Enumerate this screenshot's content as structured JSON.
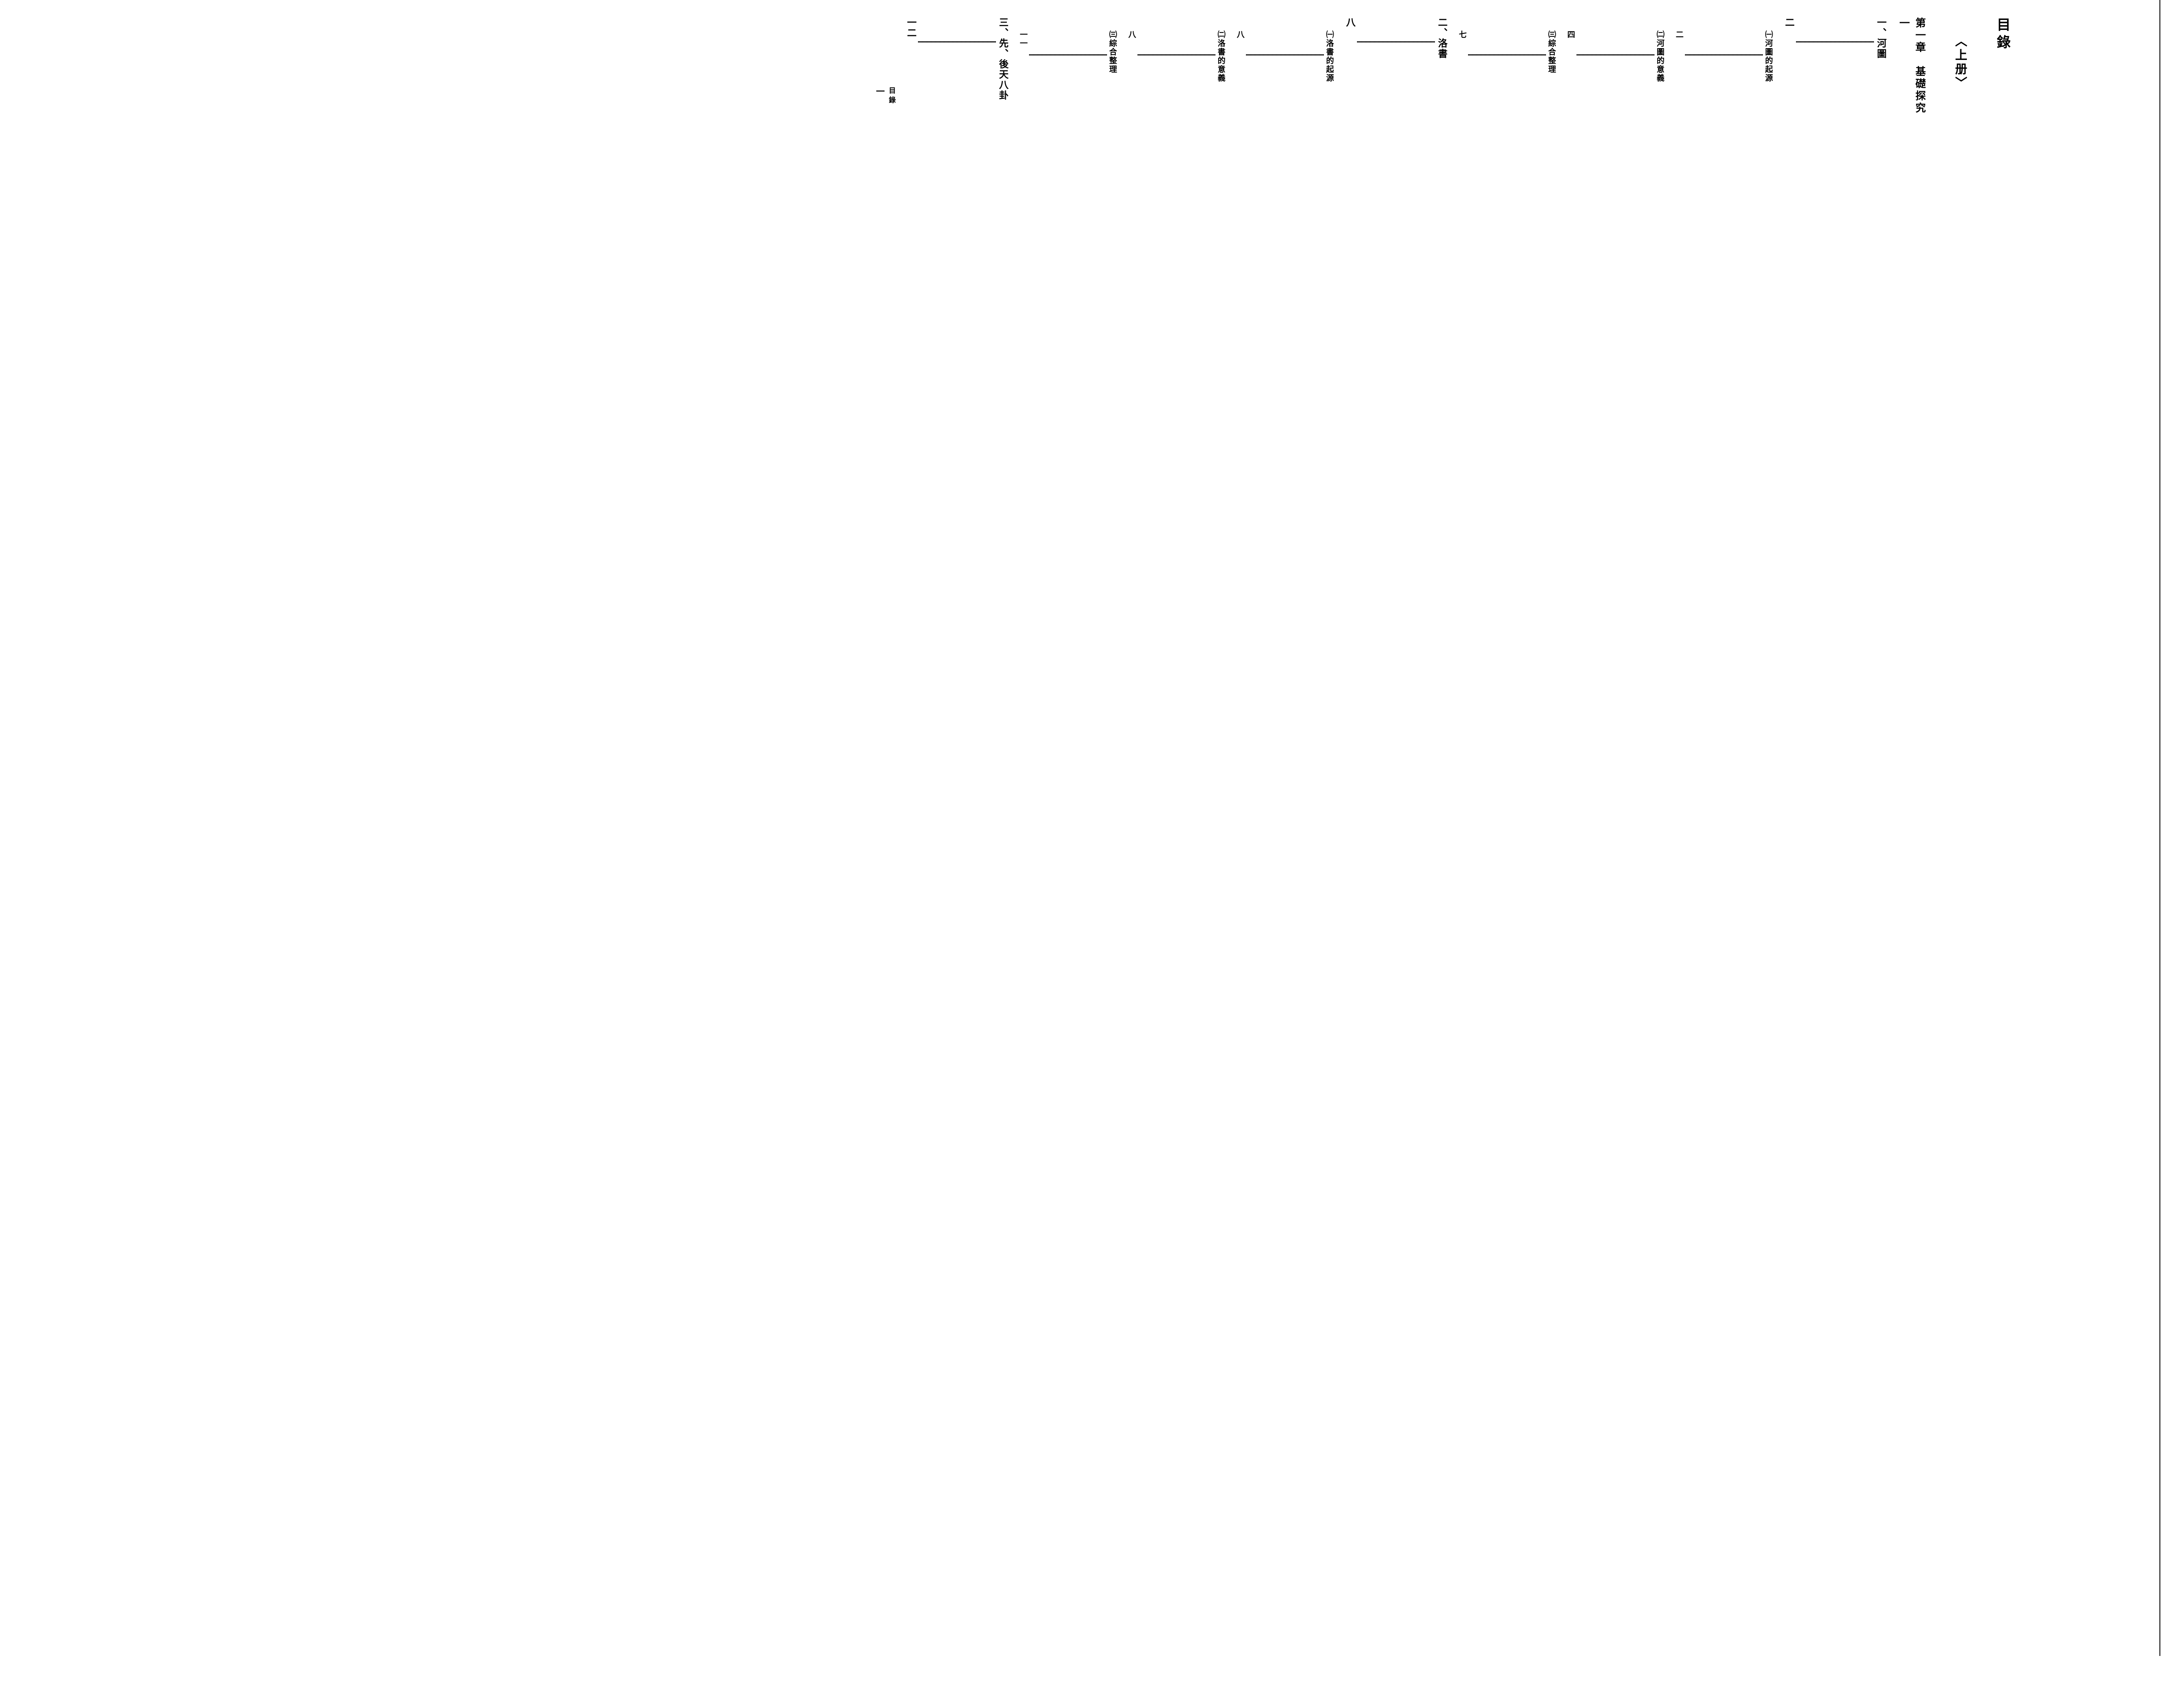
{
  "page": {
    "background_color": "#ffffff",
    "text_color": "#000000"
  },
  "header": {
    "title": "目錄",
    "volume": "〈上册〉"
  },
  "chapter": {
    "label": "第一章　基礎探究",
    "page": "一"
  },
  "toc": [
    {
      "level": 1,
      "label": "一、河圖",
      "page": "二"
    },
    {
      "level": 2,
      "label": "㈠河圖的起源",
      "page": "二"
    },
    {
      "level": 2,
      "label": "㈡河圖的意義",
      "page": "四"
    },
    {
      "level": 2,
      "label": "㈢綜合整理",
      "page": "七"
    },
    {
      "level": 1,
      "label": "二、洛書",
      "page": "八"
    },
    {
      "level": 2,
      "label": "㈠洛書的起源",
      "page": "八"
    },
    {
      "level": 2,
      "label": "㈡洛書的意義",
      "page": "八"
    },
    {
      "level": 2,
      "label": "㈢綜合整理",
      "page": "一一"
    },
    {
      "level": 1,
      "label": "三、先、後天八卦",
      "page": "一二"
    }
  ],
  "footer": {
    "label": "目錄",
    "page": "一"
  },
  "style": {
    "title_fontsize": 32,
    "chapter_fontsize": 24,
    "entry_fontsize_l1": 22,
    "entry_fontsize_l2": 18,
    "dot_color": "#000000",
    "line_color": "#000000"
  }
}
